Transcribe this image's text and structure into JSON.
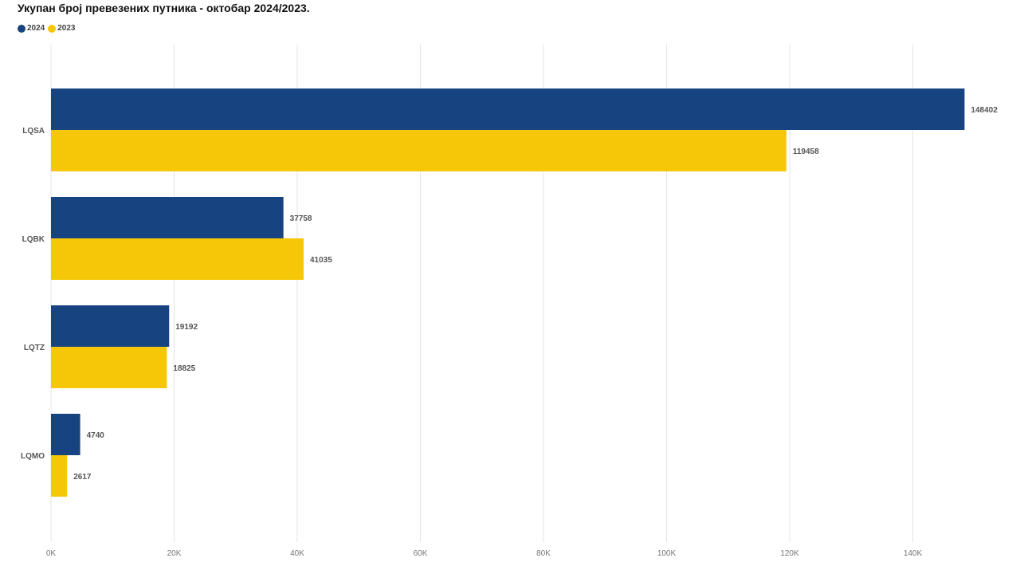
{
  "chart_data": {
    "type": "bar",
    "orientation": "horizontal",
    "title": "Укупан број превезених путника - октобар 2024/2023.",
    "categories": [
      "LQSA",
      "LQBK",
      "LQTZ",
      "LQMO"
    ],
    "series": [
      {
        "name": "2024",
        "color": "#174480",
        "values": [
          148402,
          37758,
          19192,
          4740
        ]
      },
      {
        "name": "2023",
        "color": "#F5C708",
        "values": [
          119458,
          41035,
          18825,
          2617
        ]
      }
    ],
    "xlim": [
      0,
      150000
    ],
    "xticks": [
      0,
      20000,
      40000,
      60000,
      80000,
      100000,
      120000,
      140000
    ],
    "xtick_labels": [
      "0K",
      "20K",
      "40K",
      "60K",
      "80K",
      "100K",
      "120K",
      "140K"
    ],
    "grid": true,
    "legend_position": "top-left"
  }
}
